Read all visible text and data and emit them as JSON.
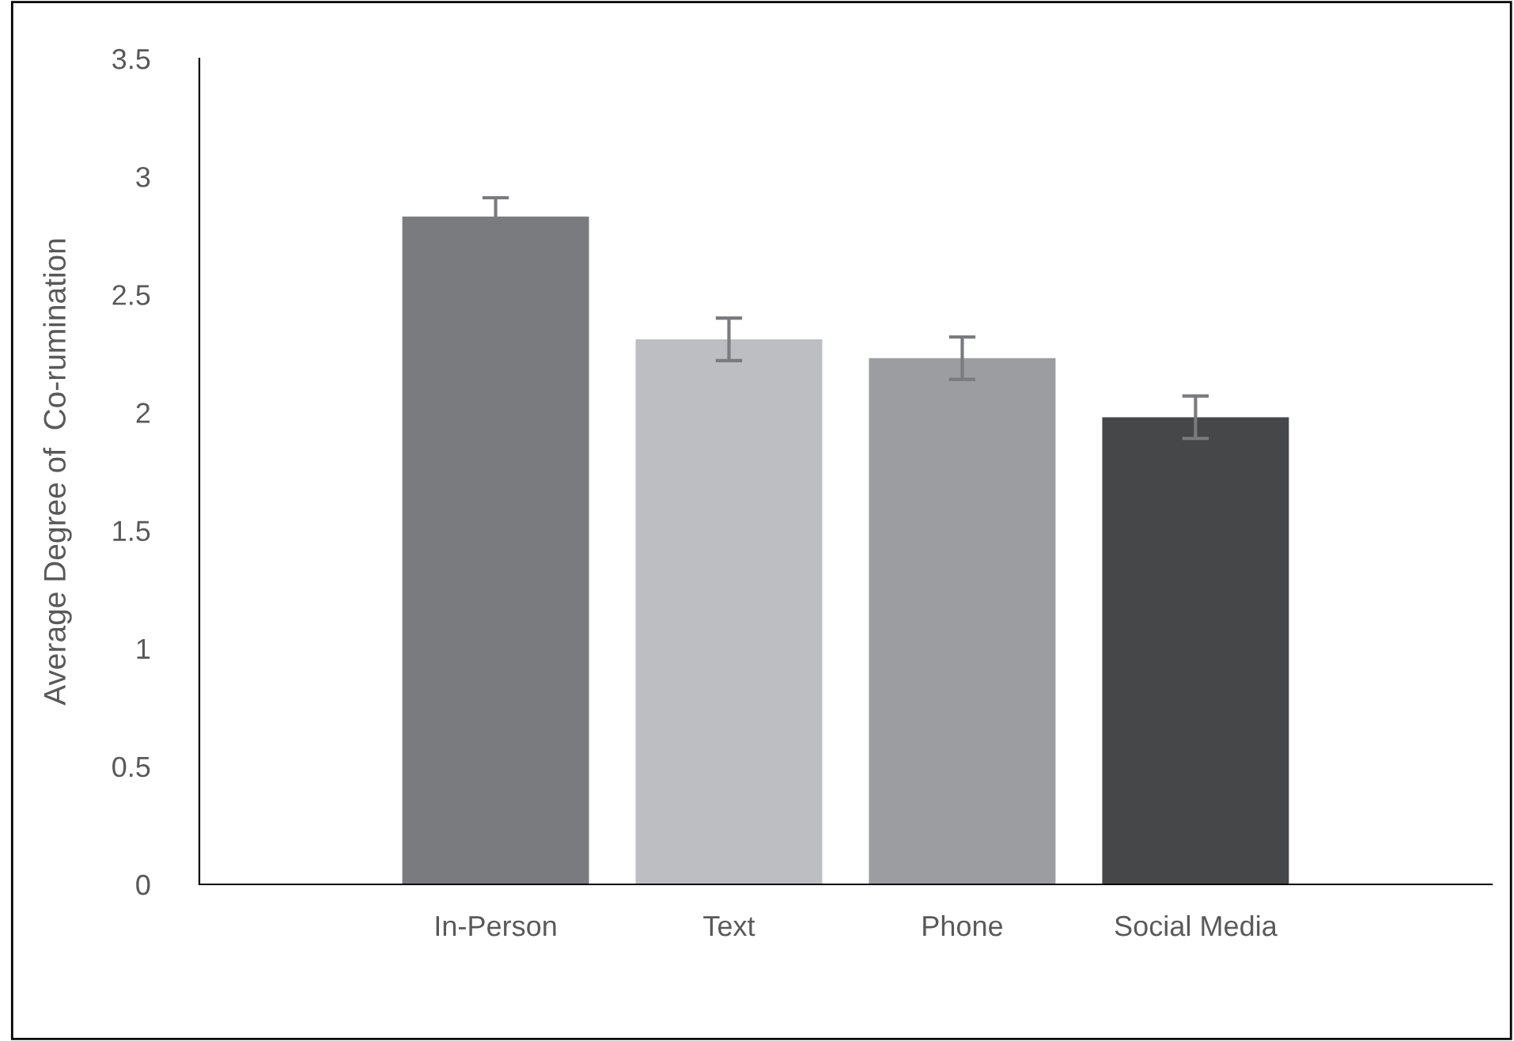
{
  "chart_data": {
    "type": "bar",
    "ylabel": "Average Degree of  Co-rumination",
    "categories": [
      "In-Person",
      "Text",
      "Phone",
      "Social Media"
    ],
    "values": [
      2.83,
      2.31,
      2.23,
      1.98
    ],
    "errors": [
      0.08,
      0.09,
      0.09,
      0.09
    ],
    "colors": [
      "#7a7b7f",
      "#bdbec1",
      "#9c9da0",
      "#464749"
    ],
    "ylim": [
      0,
      3.5
    ],
    "yticks": [
      0,
      0.5,
      1,
      1.5,
      2,
      2.5,
      3,
      3.5
    ],
    "grid": false
  }
}
